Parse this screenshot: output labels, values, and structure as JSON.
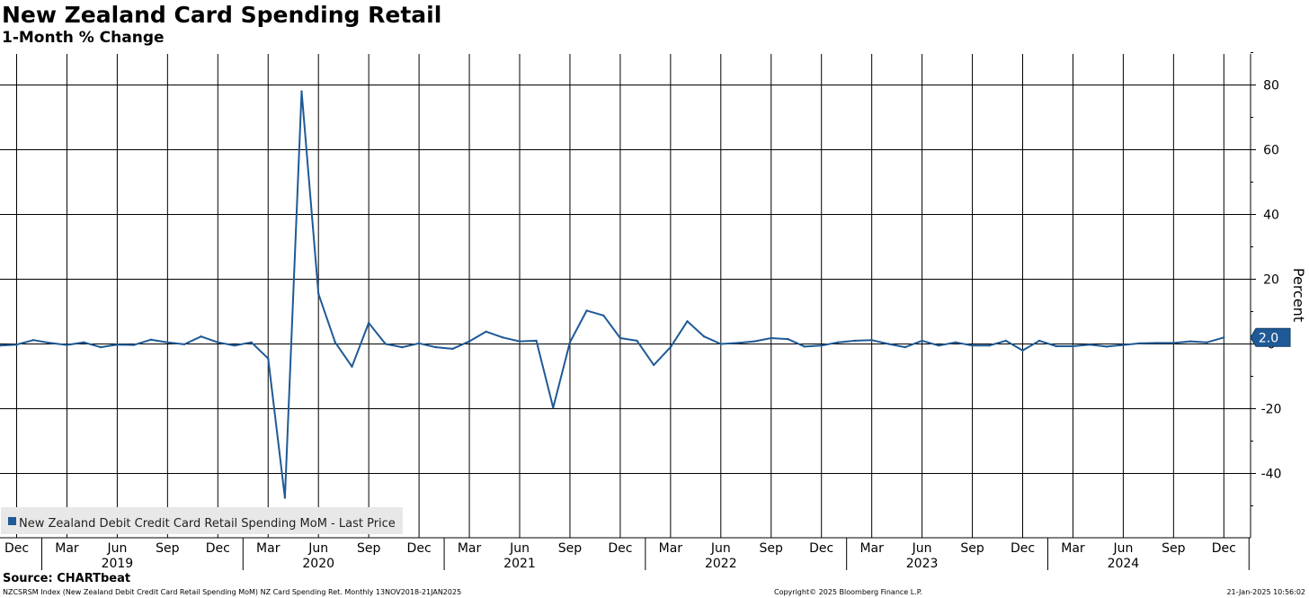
{
  "header": {
    "title": "New Zealand Card Spending Retail",
    "subtitle": "1-Month % Change"
  },
  "footer": {
    "source": "Source: CHARTbeat",
    "index_info": "NZCSRSM Index (New Zealand Debit Credit Card Retail Spending MoM) NZ Card Spending Ret.  Monthly 13NOV2018-21JAN2025",
    "copyright": "Copyright© 2025 Bloomberg Finance L.P.",
    "timestamp": "21-Jan-2025 10:56:02"
  },
  "colors": {
    "series": "#1f5a96",
    "grid": "#000000",
    "legend_bg": "#e8e8e8"
  },
  "chart_data": {
    "type": "line",
    "title": "New Zealand Card Spending Retail",
    "subtitle": "1-Month % Change",
    "ylabel": "Percent",
    "xlabel": "",
    "ylim": [
      -60,
      90
    ],
    "yticks": [
      80,
      60,
      40,
      20,
      0,
      -20,
      -40
    ],
    "grid": true,
    "y_axis_side": "right",
    "legend_position": "bottom-left",
    "x_start": "2018-11",
    "month_ticks": [
      {
        "label": "Dec",
        "index": 1
      },
      {
        "label": "Mar",
        "index": 4
      },
      {
        "label": "Jun",
        "index": 7
      },
      {
        "label": "Sep",
        "index": 10
      },
      {
        "label": "Dec",
        "index": 13
      },
      {
        "label": "Mar",
        "index": 16
      },
      {
        "label": "Jun",
        "index": 19
      },
      {
        "label": "Sep",
        "index": 22
      },
      {
        "label": "Dec",
        "index": 25
      },
      {
        "label": "Mar",
        "index": 28
      },
      {
        "label": "Jun",
        "index": 31
      },
      {
        "label": "Sep",
        "index": 34
      },
      {
        "label": "Dec",
        "index": 37
      },
      {
        "label": "Mar",
        "index": 40
      },
      {
        "label": "Jun",
        "index": 43
      },
      {
        "label": "Sep",
        "index": 46
      },
      {
        "label": "Dec",
        "index": 49
      },
      {
        "label": "Mar",
        "index": 52
      },
      {
        "label": "Jun",
        "index": 55
      },
      {
        "label": "Sep",
        "index": 58
      },
      {
        "label": "Dec",
        "index": 61
      },
      {
        "label": "Mar",
        "index": 64
      },
      {
        "label": "Jun",
        "index": 67
      },
      {
        "label": "Sep",
        "index": 70
      },
      {
        "label": "Dec",
        "index": 73
      }
    ],
    "year_labels": [
      {
        "label": "2019",
        "index": 7
      },
      {
        "label": "2020",
        "index": 19
      },
      {
        "label": "2021",
        "index": 31
      },
      {
        "label": "2022",
        "index": 43
      },
      {
        "label": "2023",
        "index": 55
      },
      {
        "label": "2024",
        "index": 67
      }
    ],
    "last_value_label": "2.0",
    "series": [
      {
        "name": "New Zealand Debit Credit Card Retail Spending MoM - Last Price",
        "values": [
          -0.5,
          -0.2,
          1.2,
          0.3,
          -0.3,
          0.5,
          -1.0,
          -0.2,
          -0.3,
          1.3,
          0.5,
          -0.1,
          2.3,
          0.5,
          -0.5,
          0.5,
          -4.5,
          -47.5,
          78.0,
          15.5,
          0.5,
          -7.0,
          6.5,
          0.0,
          -1.0,
          0.2,
          -1.0,
          -1.5,
          0.8,
          3.8,
          2.0,
          0.8,
          1.0,
          -19.7,
          0.5,
          10.3,
          8.8,
          1.8,
          1.0,
          -6.5,
          -1.0,
          7.0,
          2.3,
          0.0,
          0.3,
          0.8,
          1.8,
          1.5,
          -0.8,
          -0.5,
          0.5,
          1.0,
          1.2,
          0.0,
          -1.0,
          1.0,
          -0.5,
          0.5,
          -0.5,
          -0.5,
          1.0,
          -2.0,
          1.0,
          -0.7,
          -0.7,
          -0.2,
          -0.8,
          -0.3,
          0.2,
          0.3,
          0.3,
          0.8,
          0.5,
          2.0
        ]
      }
    ]
  }
}
